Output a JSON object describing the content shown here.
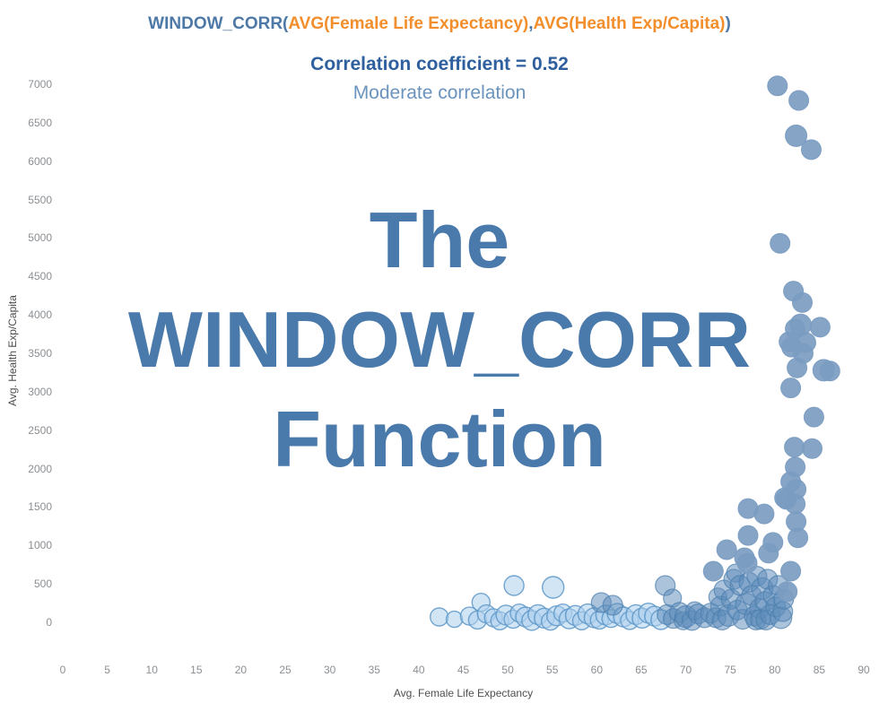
{
  "header": {
    "segments": [
      {
        "text": "WINDOW_CORR(",
        "color": "#4e79a7"
      },
      {
        "text": "AVG(Female Life Expectancy)",
        "color": "#f28e2b"
      },
      {
        "text": ",",
        "color": "#4e79a7"
      },
      {
        "text": "AVG(Health Exp/Capita)",
        "color": "#f28e2b"
      },
      {
        "text": ")",
        "color": "#4e79a7"
      }
    ]
  },
  "subtitle": {
    "correlation": "Correlation coefficient = 0.52",
    "strength": "Moderate correlation"
  },
  "watermark": {
    "line1": "The",
    "line2": "WINDOW_CORR",
    "line3": "Function"
  },
  "colors": {
    "function_blue": "#4e79a7",
    "argument_orange": "#f28e2b",
    "subtitle_bold_blue": "#2e5f9e",
    "subtitle_light_blue": "#6a93be",
    "watermark_blue": "#4a7aab",
    "point_light": "#add0ec",
    "point_mid": "#5e8cba",
    "point_dark": "#7b9cc1",
    "tick_gray": "#8b8f93",
    "axis_title_gray": "#4f4f4f"
  },
  "chart_data": {
    "type": "scatter",
    "title": "WINDOW_CORR(AVG(Female Life Expectancy),AVG(Health Exp/Capita))",
    "subtitle": "Correlation coefficient = 0.52 — Moderate correlation",
    "xlabel": "Avg. Female Life Expectancy",
    "ylabel": "Avg. Health Exp/Capita",
    "xlim": [
      0,
      90
    ],
    "ylim": [
      0,
      7000
    ],
    "x_ticks": [
      0,
      5,
      10,
      15,
      20,
      25,
      30,
      35,
      40,
      45,
      50,
      55,
      60,
      65,
      70,
      75,
      80,
      85,
      90
    ],
    "y_ticks": [
      0,
      500,
      1000,
      1500,
      2000,
      2500,
      3000,
      3500,
      4000,
      4500,
      5000,
      5500,
      6000,
      6500,
      7000
    ],
    "grid": false,
    "legend": null,
    "correlation_coefficient": 0.52,
    "points": [
      [
        42.3,
        70,
        10,
        "l"
      ],
      [
        44.0,
        40,
        9,
        "l"
      ],
      [
        45.7,
        80,
        10,
        "l"
      ],
      [
        46.6,
        30,
        10,
        "l"
      ],
      [
        47.0,
        260,
        10,
        "l"
      ],
      [
        47.6,
        110,
        10,
        "l"
      ],
      [
        48.4,
        60,
        10,
        "l"
      ],
      [
        49.1,
        20,
        10,
        "l"
      ],
      [
        49.8,
        95,
        11,
        "l"
      ],
      [
        50.6,
        40,
        10,
        "l"
      ],
      [
        50.7,
        478,
        11,
        "l"
      ],
      [
        51.3,
        120,
        10,
        "l"
      ],
      [
        52.0,
        70,
        11,
        "l"
      ],
      [
        52.7,
        25,
        11,
        "l"
      ],
      [
        53.4,
        100,
        11,
        "l"
      ],
      [
        54.1,
        55,
        11,
        "l"
      ],
      [
        54.8,
        15,
        10,
        "l"
      ],
      [
        55.1,
        455,
        12,
        "l"
      ],
      [
        55.5,
        85,
        11,
        "l"
      ],
      [
        56.2,
        120,
        10,
        "l"
      ],
      [
        56.9,
        45,
        11,
        "l"
      ],
      [
        57.6,
        90,
        11,
        "l"
      ],
      [
        58.3,
        20,
        10,
        "l"
      ],
      [
        59.0,
        110,
        11,
        "l"
      ],
      [
        59.7,
        60,
        11,
        "l"
      ],
      [
        60.3,
        30,
        10,
        "l"
      ],
      [
        61.0,
        95,
        11,
        "l"
      ],
      [
        61.6,
        50,
        10,
        "l"
      ],
      [
        62.3,
        115,
        11,
        "l"
      ],
      [
        63.0,
        70,
        11,
        "l"
      ],
      [
        63.7,
        25,
        10,
        "l"
      ],
      [
        64.4,
        100,
        11,
        "l"
      ],
      [
        65.1,
        55,
        11,
        "l"
      ],
      [
        65.8,
        120,
        11,
        "l"
      ],
      [
        66.5,
        80,
        11,
        "l"
      ],
      [
        67.2,
        35,
        11,
        "l"
      ],
      [
        60.5,
        257,
        11,
        "m"
      ],
      [
        61.8,
        222,
        11,
        "m"
      ],
      [
        67.7,
        478,
        11,
        "m"
      ],
      [
        68.5,
        315,
        10,
        "m"
      ],
      [
        67.9,
        100,
        11,
        "m"
      ],
      [
        68.6,
        50,
        11,
        "m"
      ],
      [
        69.3,
        130,
        11,
        "m"
      ],
      [
        69.7,
        20,
        10,
        "m"
      ],
      [
        70.0,
        75,
        12,
        "m"
      ],
      [
        70.7,
        25,
        11,
        "m"
      ],
      [
        71.0,
        150,
        10,
        "m"
      ],
      [
        71.4,
        110,
        11,
        "m"
      ],
      [
        72.1,
        60,
        11,
        "m"
      ],
      [
        72.8,
        120,
        11,
        "m"
      ],
      [
        73.4,
        60,
        11,
        "m"
      ],
      [
        73.6,
        330,
        10,
        "m"
      ],
      [
        73.9,
        210,
        11,
        "m"
      ],
      [
        74.1,
        30,
        11,
        "m"
      ],
      [
        74.3,
        420,
        11,
        "m"
      ],
      [
        74.8,
        90,
        12,
        "m"
      ],
      [
        75.1,
        300,
        11,
        "m"
      ],
      [
        75.4,
        560,
        11,
        "m"
      ],
      [
        75.6,
        640,
        10,
        "m"
      ],
      [
        75.8,
        160,
        11,
        "m"
      ],
      [
        76.1,
        480,
        11,
        "m"
      ],
      [
        76.4,
        40,
        11,
        "m"
      ],
      [
        76.8,
        240,
        12,
        "m"
      ],
      [
        77.1,
        520,
        11,
        "m"
      ],
      [
        77.4,
        350,
        11,
        "m"
      ],
      [
        77.7,
        80,
        11,
        "m"
      ],
      [
        77.9,
        30,
        11,
        "m"
      ],
      [
        78.0,
        600,
        11,
        "m"
      ],
      [
        78.3,
        180,
        11,
        "m"
      ],
      [
        78.4,
        40,
        11,
        "m"
      ],
      [
        78.6,
        440,
        12,
        "m"
      ],
      [
        78.9,
        270,
        11,
        "m"
      ],
      [
        79.0,
        30,
        11,
        "m"
      ],
      [
        79.2,
        560,
        11,
        "m"
      ],
      [
        79.5,
        100,
        11,
        "m"
      ],
      [
        79.8,
        350,
        11,
        "m"
      ],
      [
        80.1,
        200,
        11,
        "m"
      ],
      [
        80.4,
        480,
        11,
        "m"
      ],
      [
        80.7,
        60,
        12,
        "m"
      ],
      [
        80.9,
        140,
        11,
        "m"
      ],
      [
        81.0,
        300,
        11,
        "m"
      ],
      [
        73.1,
        665,
        11,
        "d"
      ],
      [
        74.6,
        945,
        11,
        "d"
      ],
      [
        76.6,
        840,
        11,
        "d"
      ],
      [
        76.9,
        770,
        11,
        "d"
      ],
      [
        77.0,
        1130,
        11,
        "d"
      ],
      [
        77.0,
        1480,
        11,
        "d"
      ],
      [
        78.8,
        1410,
        11,
        "d"
      ],
      [
        79.3,
        900,
        11,
        "d"
      ],
      [
        79.8,
        1040,
        11,
        "d"
      ],
      [
        81.4,
        400,
        11,
        "d"
      ],
      [
        81.8,
        665,
        11,
        "d"
      ],
      [
        82.6,
        1100,
        11,
        "d"
      ],
      [
        82.4,
        1310,
        11,
        "d"
      ],
      [
        81.1,
        1620,
        11,
        "d"
      ],
      [
        81.3,
        1600,
        11,
        "d"
      ],
      [
        82.3,
        1540,
        11,
        "d"
      ],
      [
        82.4,
        1730,
        11,
        "d"
      ],
      [
        81.8,
        1830,
        11,
        "d"
      ],
      [
        82.3,
        2020,
        11,
        "d"
      ],
      [
        84.2,
        2260,
        11,
        "d"
      ],
      [
        82.2,
        2280,
        11,
        "d"
      ],
      [
        84.4,
        2670,
        11,
        "d"
      ],
      [
        81.8,
        3050,
        11,
        "d"
      ],
      [
        82.5,
        3310,
        11,
        "d"
      ],
      [
        85.5,
        3280,
        12,
        "d"
      ],
      [
        86.2,
        3270,
        11,
        "d"
      ],
      [
        83.2,
        3500,
        11,
        "d"
      ],
      [
        81.9,
        3580,
        11,
        "d"
      ],
      [
        83.5,
        3640,
        11,
        "d"
      ],
      [
        81.6,
        3650,
        11,
        "d"
      ],
      [
        82.3,
        3820,
        11,
        "d"
      ],
      [
        85.1,
        3840,
        11,
        "d"
      ],
      [
        82.9,
        3870,
        12,
        "d"
      ],
      [
        83.1,
        4160,
        11,
        "d"
      ],
      [
        82.1,
        4310,
        11,
        "d"
      ],
      [
        80.6,
        4930,
        11,
        "d"
      ],
      [
        84.1,
        6150,
        11,
        "d"
      ],
      [
        82.4,
        6330,
        12,
        "d"
      ],
      [
        82.7,
        6790,
        11,
        "d"
      ],
      [
        80.3,
        6980,
        11,
        "d"
      ]
    ]
  }
}
